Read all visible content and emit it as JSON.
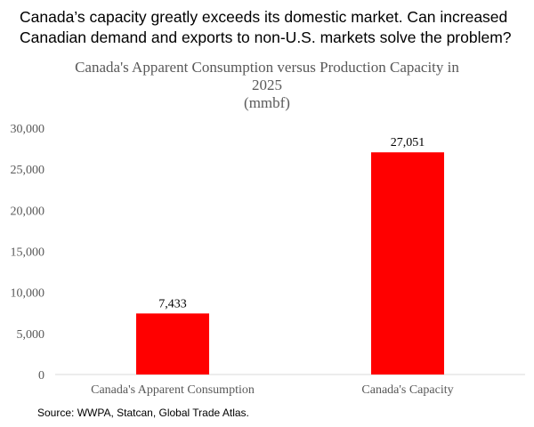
{
  "headline": {
    "line1": "Canada’s capacity greatly exceeds its domestic market.  Can increased",
    "line2": "Canadian demand and exports to non-U.S. markets solve the problem?"
  },
  "source": "Source:  WWPA, Statcan, Global Trade Atlas.",
  "chart_data": {
    "type": "bar",
    "title_lines": [
      "Canada's Apparent Consumption versus Production Capacity in",
      "2025",
      "(mmbf)"
    ],
    "categories": [
      "Canada's Apparent Consumption",
      "Canada's Capacity"
    ],
    "values": [
      7433,
      27051
    ],
    "data_labels": [
      "7,433",
      "27,051"
    ],
    "ylim": [
      0,
      30000
    ],
    "yticks": [
      0,
      5000,
      10000,
      15000,
      20000,
      25000,
      30000
    ],
    "ytick_labels": [
      "0",
      "5,000",
      "10,000",
      "15,000",
      "20,000",
      "25,000",
      "30,000"
    ],
    "bar_color": "#ff0000",
    "grid": false,
    "legend": "none"
  }
}
